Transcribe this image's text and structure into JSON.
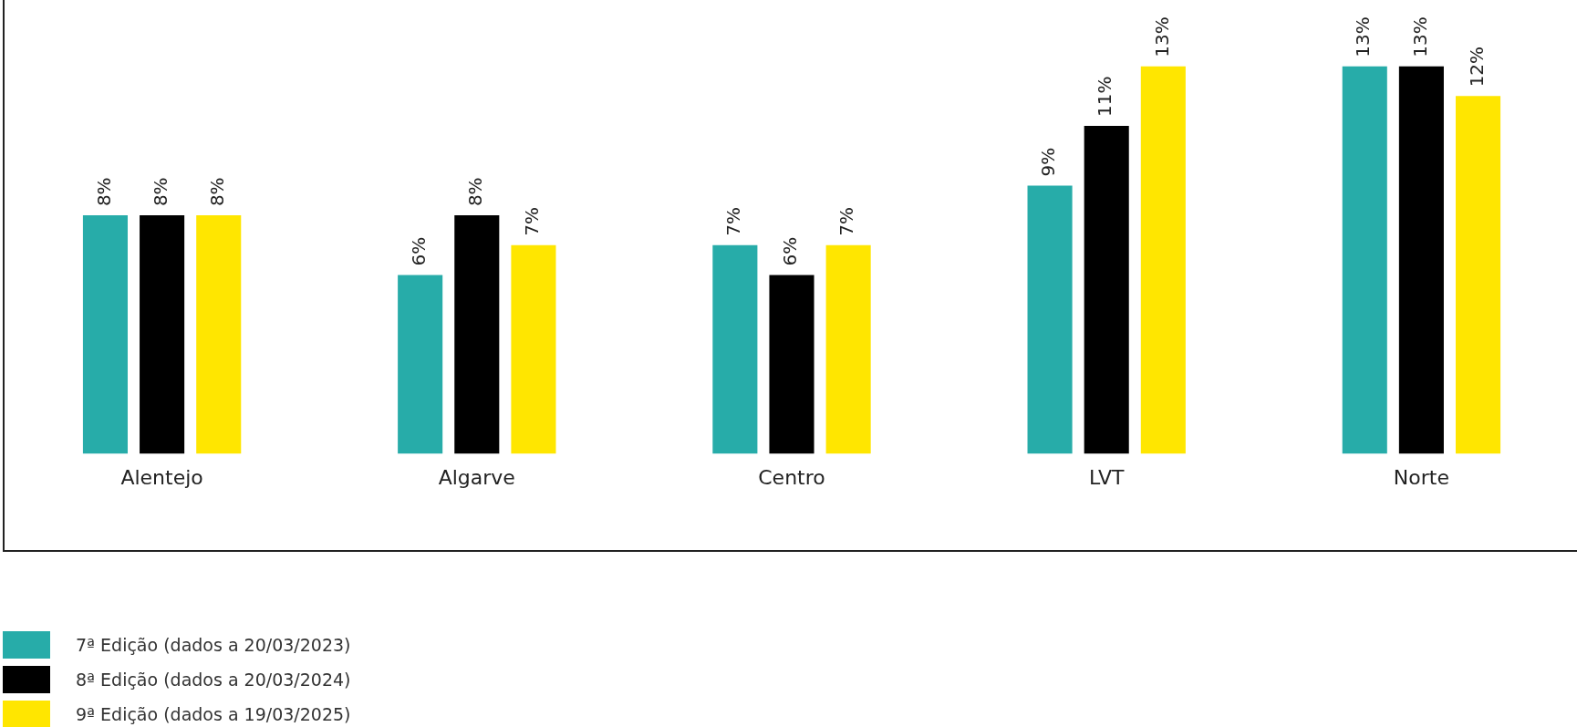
{
  "chart_data": {
    "type": "bar",
    "categories": [
      "Alentejo",
      "Algarve",
      "Centro",
      "LVT",
      "Norte"
    ],
    "series": [
      {
        "name": "7ª Edição (dados a 20/03/2023)",
        "color": "#27aca9",
        "values": [
          8,
          6,
          7,
          9,
          13
        ],
        "value_labels": [
          "8%",
          "6%",
          "7%",
          "9%",
          "13%"
        ]
      },
      {
        "name": "8ª Edição (dados a 20/03/2024)",
        "color": "#000000",
        "values": [
          8,
          8,
          6,
          11,
          13
        ],
        "value_labels": [
          "8%",
          "8%",
          "6%",
          "11%",
          "13%"
        ]
      },
      {
        "name": "9ª Edição (dados a 19/03/2025)",
        "color": "#ffe600",
        "values": [
          8,
          7,
          7,
          13,
          12
        ],
        "value_labels": [
          "8%",
          "7%",
          "7%",
          "13%",
          "12%"
        ]
      }
    ],
    "grid": false,
    "legend": "bottom left",
    "tick_labels": "x"
  }
}
